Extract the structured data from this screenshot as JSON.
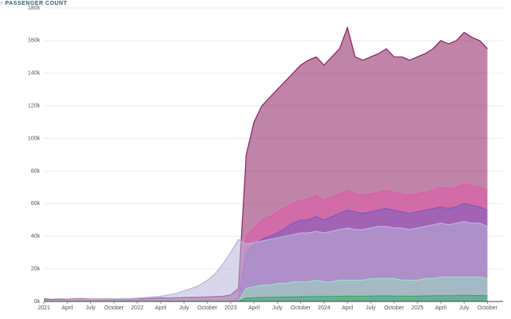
{
  "chart_data": {
    "type": "area",
    "title": "↑ PASSENGER COUNT",
    "x": [
      "2021-01",
      "2021-02",
      "2021-03",
      "2021-04",
      "2021-05",
      "2021-06",
      "2021-07",
      "2021-08",
      "2021-09",
      "2021-10",
      "2021-11",
      "2021-12",
      "2022-01",
      "2022-02",
      "2022-03",
      "2022-04",
      "2022-05",
      "2022-06",
      "2022-07",
      "2022-08",
      "2022-09",
      "2022-10",
      "2022-11",
      "2022-12",
      "2023-01",
      "2023-02",
      "2023-03",
      "2023-04",
      "2023-05",
      "2023-06",
      "2023-07",
      "2023-08",
      "2023-09",
      "2023-10",
      "2023-11",
      "2023-12",
      "2024-01",
      "2024-02",
      "2024-03",
      "2024-04",
      "2024-05",
      "2024-06",
      "2024-07",
      "2024-08",
      "2024-09",
      "2024-10",
      "2024-11",
      "2024-12",
      "2025-01",
      "2025-02",
      "2025-03",
      "2025-04",
      "2025-05",
      "2025-06",
      "2025-07",
      "2025-08",
      "2025-09",
      "2025-10"
    ],
    "series": [
      {
        "color": "#8e1f62",
        "values": [
          1500,
          1200,
          1400,
          1300,
          1500,
          1600,
          1400,
          1500,
          1600,
          1500,
          1700,
          1600,
          1800,
          1700,
          2000,
          2200,
          2100,
          2300,
          2400,
          2500,
          2600,
          2800,
          3000,
          3200,
          4000,
          8000,
          90000,
          110000,
          120000,
          125000,
          130000,
          135000,
          140000,
          145000,
          148000,
          150000,
          145000,
          150000,
          155000,
          168000,
          150000,
          148000,
          150000,
          152000,
          155000,
          150000,
          150000,
          148000,
          150000,
          152000,
          155000,
          160000,
          158000,
          160000,
          165000,
          162000,
          160000,
          155000
        ]
      },
      {
        "color": "#e05aa8",
        "values": [
          300,
          300,
          300,
          300,
          300,
          300,
          300,
          300,
          300,
          300,
          300,
          300,
          300,
          300,
          300,
          300,
          300,
          300,
          300,
          300,
          300,
          300,
          300,
          300,
          500,
          2000,
          40000,
          45000,
          50000,
          52000,
          55000,
          58000,
          60000,
          62000,
          63000,
          65000,
          62000,
          64000,
          66000,
          68000,
          66000,
          65000,
          66000,
          67000,
          68000,
          67000,
          66000,
          65000,
          66000,
          67000,
          68000,
          70000,
          69000,
          70000,
          72000,
          71000,
          70000,
          68000
        ]
      },
      {
        "color": "#7a5cc0",
        "values": [
          200,
          200,
          200,
          200,
          200,
          200,
          200,
          200,
          200,
          200,
          200,
          200,
          200,
          200,
          200,
          200,
          200,
          200,
          200,
          200,
          200,
          200,
          200,
          200,
          300,
          1000,
          30000,
          35000,
          38000,
          40000,
          42000,
          45000,
          48000,
          50000,
          50000,
          52000,
          50000,
          52000,
          54000,
          56000,
          55000,
          54000,
          55000,
          56000,
          57000,
          56000,
          55000,
          54000,
          55000,
          56000,
          57000,
          58000,
          57000,
          58000,
          60000,
          59000,
          58000,
          56000
        ]
      },
      {
        "color": "#b8b4da",
        "values": [
          1000,
          900,
          1000,
          1100,
          1200,
          1300,
          1200,
          1400,
          1500,
          1600,
          1700,
          1800,
          2000,
          2400,
          2800,
          3200,
          4000,
          5000,
          6500,
          8000,
          10000,
          13000,
          17000,
          23000,
          30000,
          38000,
          35000,
          36000,
          37000,
          38000,
          39000,
          40000,
          41000,
          42000,
          42000,
          43000,
          42000,
          43000,
          44000,
          45000,
          44000,
          44000,
          45000,
          46000,
          46000,
          45000,
          45000,
          44000,
          45000,
          46000,
          47000,
          48000,
          47000,
          48000,
          49000,
          48000,
          48000,
          46000
        ]
      },
      {
        "color": "#9ddcc0",
        "values": [
          200,
          200,
          200,
          200,
          200,
          200,
          200,
          200,
          200,
          200,
          200,
          200,
          200,
          200,
          200,
          200,
          200,
          200,
          200,
          200,
          200,
          200,
          200,
          200,
          200,
          200,
          8000,
          9000,
          10000,
          10000,
          11000,
          11000,
          12000,
          12000,
          12000,
          13000,
          12000,
          12000,
          13000,
          13000,
          13000,
          13000,
          14000,
          14000,
          14000,
          14000,
          13000,
          13000,
          13000,
          14000,
          14000,
          15000,
          15000,
          15000,
          15000,
          15000,
          15000,
          14000
        ]
      },
      {
        "color": "#3aa86b",
        "values": [
          100,
          100,
          100,
          100,
          100,
          100,
          100,
          100,
          100,
          100,
          100,
          100,
          100,
          100,
          100,
          100,
          100,
          100,
          100,
          100,
          100,
          100,
          100,
          100,
          100,
          100,
          2000,
          2200,
          2400,
          2500,
          2600,
          2700,
          2800,
          2900,
          3000,
          3000,
          3000,
          3100,
          3200,
          3300,
          3200,
          3200,
          3300,
          3400,
          3400,
          3300,
          3300,
          3200,
          3300,
          3400,
          3500,
          3600,
          3500,
          3600,
          3700,
          3600,
          3600,
          3500
        ]
      }
    ],
    "xlim": [
      "2021-01",
      "2025-12"
    ],
    "xticks": [
      {
        "value": "2021-01",
        "label": "2021"
      },
      {
        "value": "2021-04",
        "label": "April"
      },
      {
        "value": "2021-07",
        "label": "July"
      },
      {
        "value": "2021-10",
        "label": "October"
      },
      {
        "value": "2022-01",
        "label": "2022"
      },
      {
        "value": "2022-04",
        "label": "April"
      },
      {
        "value": "2022-07",
        "label": "July"
      },
      {
        "value": "2022-10",
        "label": "October"
      },
      {
        "value": "2023-01",
        "label": "2023"
      },
      {
        "value": "2023-04",
        "label": "April"
      },
      {
        "value": "2023-07",
        "label": "July"
      },
      {
        "value": "2023-10",
        "label": "October"
      },
      {
        "value": "2024-01",
        "label": "2024"
      },
      {
        "value": "2024-04",
        "label": "April"
      },
      {
        "value": "2024-07",
        "label": "July"
      },
      {
        "value": "2024-10",
        "label": "October"
      },
      {
        "value": "2025-01",
        "label": "2025"
      },
      {
        "value": "2025-04",
        "label": "April"
      },
      {
        "value": "2025-07",
        "label": "July"
      },
      {
        "value": "2025-10",
        "label": "October"
      }
    ],
    "ylim": [
      0,
      180000
    ],
    "yticks": [
      {
        "value": 0,
        "label": "0k"
      },
      {
        "value": 20000,
        "label": "20k"
      },
      {
        "value": 40000,
        "label": "40k"
      },
      {
        "value": 60000,
        "label": "60k"
      },
      {
        "value": 80000,
        "label": "80k"
      },
      {
        "value": 100000,
        "label": "100k"
      },
      {
        "value": 120000,
        "label": "120k"
      },
      {
        "value": 140000,
        "label": "140k"
      },
      {
        "value": 160000,
        "label": "160k"
      },
      {
        "value": 180000,
        "label": "180k"
      }
    ],
    "grid": true
  }
}
